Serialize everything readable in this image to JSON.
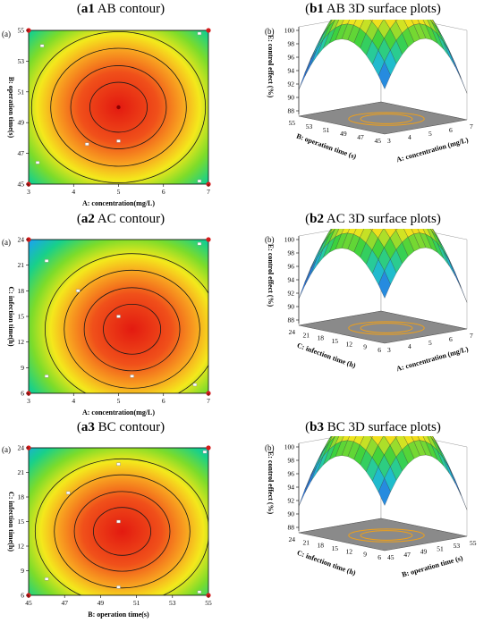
{
  "panels": [
    {
      "id": "a1",
      "kind": "contour",
      "title_bold": "a1",
      "title_rest": " AB contour",
      "tag": "(a)",
      "chart_data": {
        "type": "heatmap",
        "subtype": "contour",
        "x": {
          "label": "A:  concentration(mg/L)",
          "range": [
            3,
            7
          ],
          "ticks": [
            "3",
            "4",
            "5",
            "6",
            "7"
          ]
        },
        "y": {
          "label": "B: operation time(s)",
          "range": [
            45,
            55
          ],
          "ticks": [
            "45",
            "47",
            "49",
            "51",
            "53",
            "55"
          ]
        },
        "center": [
          5,
          50
        ],
        "design_points": [
          [
            3,
            45
          ],
          [
            3,
            55
          ],
          [
            7,
            45
          ],
          [
            7,
            55
          ],
          [
            5,
            50
          ],
          [
            5,
            47.8
          ],
          [
            3.2,
            46.4
          ],
          [
            4.3,
            47.6
          ],
          [
            3.3,
            54
          ],
          [
            6.8,
            45.2
          ],
          [
            6.8,
            54.8
          ]
        ]
      }
    },
    {
      "id": "b1",
      "kind": "surface",
      "title_bold": "b1",
      "title_rest": " AB 3D surface plots",
      "tag": "(b)",
      "chart_data": {
        "type": "area",
        "subtype": "3d-surface",
        "z": {
          "label": "E: control effect (%)",
          "range": [
            88,
            100
          ],
          "ticks": [
            "88",
            "90",
            "92",
            "94",
            "96",
            "98",
            "100"
          ]
        },
        "left_axis": {
          "label": "B: operation time (s)",
          "ticks": [
            "55",
            "53",
            "51",
            "49",
            "47",
            "45"
          ]
        },
        "right_axis": {
          "label": "A:  concentration (mg/L)",
          "ticks": [
            "3",
            "4",
            "5",
            "6",
            "7"
          ]
        },
        "peak": 99
      }
    },
    {
      "id": "a2",
      "kind": "contour",
      "title_bold": "a2",
      "title_rest": " AC contour",
      "tag": "(a)",
      "chart_data": {
        "type": "heatmap",
        "subtype": "contour",
        "x": {
          "label": "A:  concentration(mg/L)",
          "range": [
            3,
            7
          ],
          "ticks": [
            "3",
            "4",
            "5",
            "6",
            "7"
          ]
        },
        "y": {
          "label": "C: infection time(h)",
          "range": [
            6,
            24
          ],
          "ticks": [
            "6",
            "9",
            "12",
            "15",
            "18",
            "21",
            "24"
          ]
        },
        "center": [
          5.3,
          13.5
        ],
        "design_points": [
          [
            3,
            6
          ],
          [
            3,
            24
          ],
          [
            7,
            6
          ],
          [
            7,
            24
          ],
          [
            5,
            15
          ],
          [
            5.3,
            8
          ],
          [
            3.4,
            8
          ],
          [
            4.1,
            18
          ],
          [
            3.4,
            21.5
          ],
          [
            6.7,
            7
          ],
          [
            6.8,
            23.5
          ]
        ]
      }
    },
    {
      "id": "b2",
      "kind": "surface",
      "title_bold": "b2",
      "title_rest": " AC 3D surface plots",
      "tag": "(b)",
      "chart_data": {
        "type": "area",
        "subtype": "3d-surface",
        "z": {
          "label": "E: control effect (%)",
          "range": [
            88,
            100
          ],
          "ticks": [
            "88",
            "90",
            "92",
            "94",
            "96",
            "98",
            "100"
          ]
        },
        "left_axis": {
          "label": "C: infection time (h)",
          "ticks": [
            "24",
            "21",
            "18",
            "15",
            "12",
            "9",
            "6"
          ]
        },
        "right_axis": {
          "label": "A:  concentration (mg/L)",
          "ticks": [
            "3",
            "4",
            "5",
            "6",
            "7"
          ]
        },
        "peak": 99
      }
    },
    {
      "id": "a3",
      "kind": "contour",
      "title_bold": "a3",
      "title_rest": " BC contour",
      "tag": "(a)",
      "chart_data": {
        "type": "heatmap",
        "subtype": "contour",
        "x": {
          "label": "B: operation time(s)",
          "range": [
            45,
            55
          ],
          "ticks": [
            "45",
            "47",
            "49",
            "51",
            "53",
            "55"
          ]
        },
        "y": {
          "label": "C: infection time(h)",
          "range": [
            6,
            24
          ],
          "ticks": [
            "6",
            "9",
            "12",
            "15",
            "18",
            "21",
            "24"
          ]
        },
        "center": [
          50.2,
          13.8
        ],
        "design_points": [
          [
            45,
            6
          ],
          [
            45,
            24
          ],
          [
            55,
            6
          ],
          [
            55,
            24
          ],
          [
            50,
            15
          ],
          [
            50,
            7
          ],
          [
            46,
            8
          ],
          [
            47.2,
            18.5
          ],
          [
            50,
            22
          ],
          [
            54.5,
            6.4
          ],
          [
            54.8,
            23.5
          ]
        ]
      }
    },
    {
      "id": "b3",
      "kind": "surface",
      "title_bold": "b3",
      "title_rest": " BC 3D surface plots",
      "tag": "(b)",
      "chart_data": {
        "type": "area",
        "subtype": "3d-surface",
        "z": {
          "label": "E: control effect (%)",
          "range": [
            88,
            100
          ],
          "ticks": [
            "88",
            "90",
            "92",
            "94",
            "96",
            "98",
            "100"
          ]
        },
        "left_axis": {
          "label": "C: infection time (h)",
          "ticks": [
            "24",
            "21",
            "18",
            "15",
            "12",
            "9",
            "6"
          ]
        },
        "right_axis": {
          "label": "B: operation time (s)",
          "ticks": [
            "45",
            "47",
            "49",
            "51",
            "53",
            "55"
          ]
        },
        "peak": 99
      }
    }
  ]
}
